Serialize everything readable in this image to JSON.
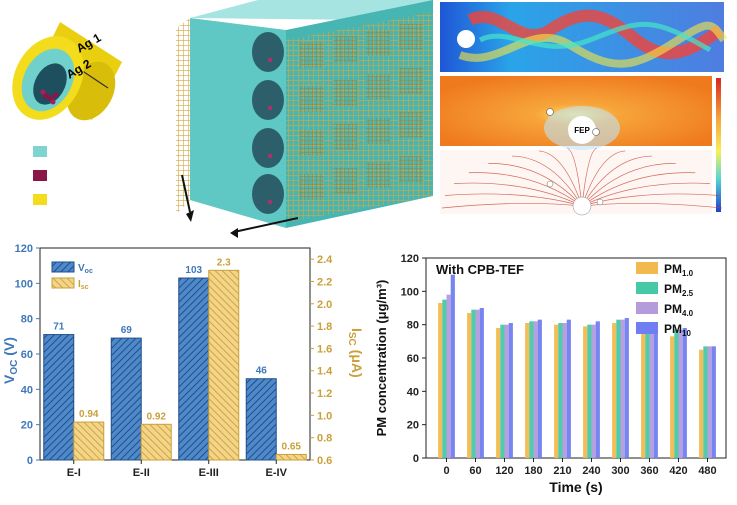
{
  "illustration": {
    "ring_labels": [
      "Ag 1",
      "Ag 2"
    ],
    "legend_colors": [
      "#7fd3d0",
      "#8a1748",
      "#f2dc1b"
    ],
    "colors": {
      "cube_face": "#6fd0cc",
      "cube_side": "#3d9e9b",
      "cube_top": "#a6e4e1",
      "mesh": "#d9b04a",
      "silver_band": "#f2dc1b"
    }
  },
  "simulation": {
    "particle_label": "FEP"
  },
  "chart_data": [
    {
      "type": "bar",
      "categories": [
        "E-I",
        "E-II",
        "E-III",
        "E-IV"
      ],
      "series": [
        {
          "name": "Voc",
          "values": [
            71,
            69,
            103,
            46
          ],
          "labels": [
            "71",
            "69",
            "103",
            "46"
          ],
          "color": "#3f78b8"
        },
        {
          "name": "Isc",
          "values": [
            0.94,
            0.92,
            2.3,
            0.65
          ],
          "labels": [
            "0.94",
            "0.92",
            "2.3",
            "0.65"
          ],
          "color": "#e8bf5c"
        }
      ],
      "legend": {
        "voc_main": "V",
        "voc_sub": "oc",
        "isc_main": "I",
        "isc_sub": "sc",
        "position": "top-left"
      },
      "ylabel_left": {
        "main": "V",
        "sub": "OC",
        "unit": " (V)"
      },
      "ylabel_right": "I",
      "ylabel_right_sub": "SC",
      "ylabel_right_unit": " (μA)",
      "ylim_left": [
        0,
        120
      ],
      "ylim_right": [
        0.6,
        2.5
      ],
      "yticks_left": [
        0,
        20,
        40,
        60,
        80,
        100,
        120
      ],
      "yticks_right": [
        0.6,
        0.8,
        1.0,
        1.2,
        1.4,
        1.6,
        1.8,
        2.0,
        2.2,
        2.4
      ],
      "ytick_labels_right": [
        "0.6",
        "0.8",
        "1.0",
        "1.2",
        "1.4",
        "1.6",
        "1.8",
        "2.0",
        "2.2",
        "2.4"
      ],
      "left_axis_color": "#3f78b8",
      "right_axis_color": "#c9a03a"
    },
    {
      "type": "bar",
      "title": "With CPB-TEF",
      "categories": [
        "0",
        "60",
        "120",
        "180",
        "210",
        "240",
        "300",
        "360",
        "420",
        "480"
      ],
      "series": [
        {
          "name": "PM1.0",
          "main": "PM",
          "sub": "1.0",
          "values": [
            93,
            87,
            78,
            81,
            80,
            79,
            81,
            76,
            73,
            65
          ],
          "color": "#f2b94e"
        },
        {
          "name": "PM2.5",
          "main": "PM",
          "sub": "2.5",
          "values": [
            95,
            89,
            80,
            82,
            81,
            80,
            83,
            77,
            77,
            67
          ],
          "color": "#46c9a7"
        },
        {
          "name": "PM4.0",
          "main": "PM",
          "sub": "4.0",
          "values": [
            98,
            89,
            80,
            82,
            81,
            80,
            83,
            77,
            77,
            67
          ],
          "color": "#b49bdc"
        },
        {
          "name": "PM10",
          "main": "PM",
          "sub": "10",
          "values": [
            110,
            90,
            81,
            83,
            83,
            82,
            84,
            78,
            78,
            67
          ],
          "color": "#6f7ef0"
        }
      ],
      "xlabel": "Time (s)",
      "ylabel": "PM concentration (μg/m³)",
      "ylim": [
        0,
        120
      ],
      "yticks": [
        0,
        20,
        40,
        60,
        80,
        100,
        120
      ]
    }
  ]
}
